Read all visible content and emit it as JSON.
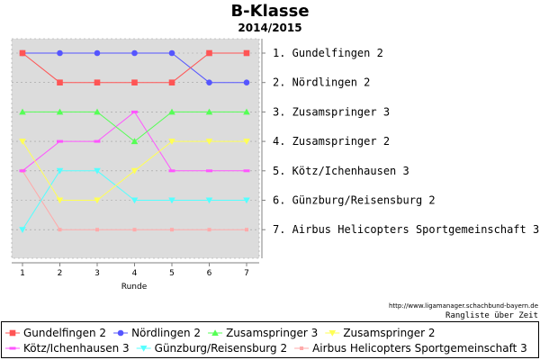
{
  "chart_data": {
    "type": "line",
    "title": "B-Klasse",
    "subtitle": "2014/2015",
    "xlabel": "Runde",
    "ylabel": "",
    "x": [
      1,
      2,
      3,
      4,
      5,
      6,
      7
    ],
    "ylim": [
      1,
      7
    ],
    "y_inverted": true,
    "grid": true,
    "legend_position": "bottom",
    "rank_labels": [
      "1. Gundelfingen 2",
      "2. Nördlingen 2",
      "3. Zusamspringer 3",
      "4. Zusamspringer 2",
      "5. Kötz/Ichenhausen 3",
      "6. Günzburg/Reisensburg 2",
      "7. Airbus Helicopters Sportgemeinschaft 3"
    ],
    "series": [
      {
        "name": "Gundelfingen 2",
        "color": "#ff5555",
        "marker": "square",
        "values": [
          1,
          2,
          2,
          2,
          2,
          1,
          1
        ]
      },
      {
        "name": "Nördlingen 2",
        "color": "#5555ff",
        "marker": "circle",
        "values": [
          1,
          1,
          1,
          1,
          1,
          2,
          2
        ]
      },
      {
        "name": "Zusamspringer 3",
        "color": "#55ff55",
        "marker": "triangle-up",
        "values": [
          3,
          3,
          3,
          4,
          3,
          3,
          3
        ]
      },
      {
        "name": "Zusamspringer 2",
        "color": "#ffff55",
        "marker": "triangle-down",
        "values": [
          4,
          6,
          6,
          5,
          4,
          4,
          4
        ]
      },
      {
        "name": "Kötz/Ichenhausen 3",
        "color": "#ff55ff",
        "marker": "dash",
        "values": [
          5,
          4,
          4,
          3,
          5,
          5,
          5
        ]
      },
      {
        "name": "Günzburg/Reisensburg 2",
        "color": "#55ffff",
        "marker": "triangle-down",
        "values": [
          7,
          5,
          5,
          6,
          6,
          6,
          6
        ]
      },
      {
        "name": "Airbus Helicopters Sportgemeinschaft 3",
        "color": "#ffaaaa",
        "marker": "square-small",
        "values": [
          5,
          7,
          7,
          7,
          7,
          7,
          7
        ]
      }
    ]
  },
  "footer": {
    "source_url": "http://www.ligamanager.schachbund-bayern.de",
    "note": "Rangliste über Zeit"
  }
}
